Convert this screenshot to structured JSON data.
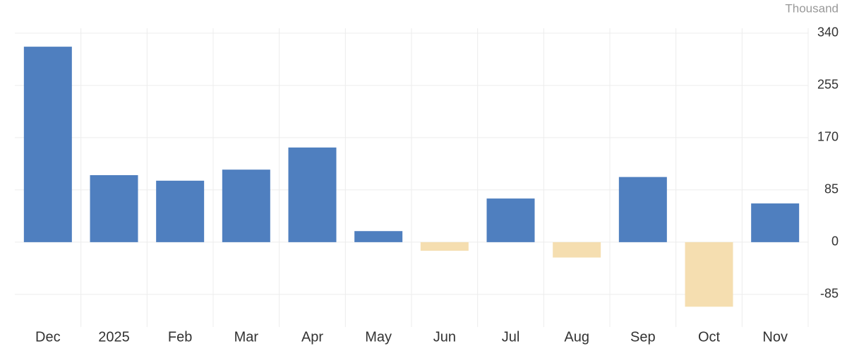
{
  "chart_data": {
    "type": "bar",
    "unit_label": "Thousand",
    "categories": [
      "Dec",
      "2025",
      "Feb",
      "Mar",
      "Apr",
      "May",
      "Jun",
      "Jul",
      "Aug",
      "Sep",
      "Oct",
      "Nov"
    ],
    "values": [
      318,
      109,
      100,
      118,
      154,
      18,
      -14,
      71,
      -25,
      106,
      -105,
      63
    ],
    "color": "#4f7fbf",
    "negative_color": "#f5deb0",
    "ylim": [
      -138,
      348
    ],
    "yticks": [
      -85,
      0,
      85,
      170,
      255,
      340
    ],
    "grid": true
  }
}
